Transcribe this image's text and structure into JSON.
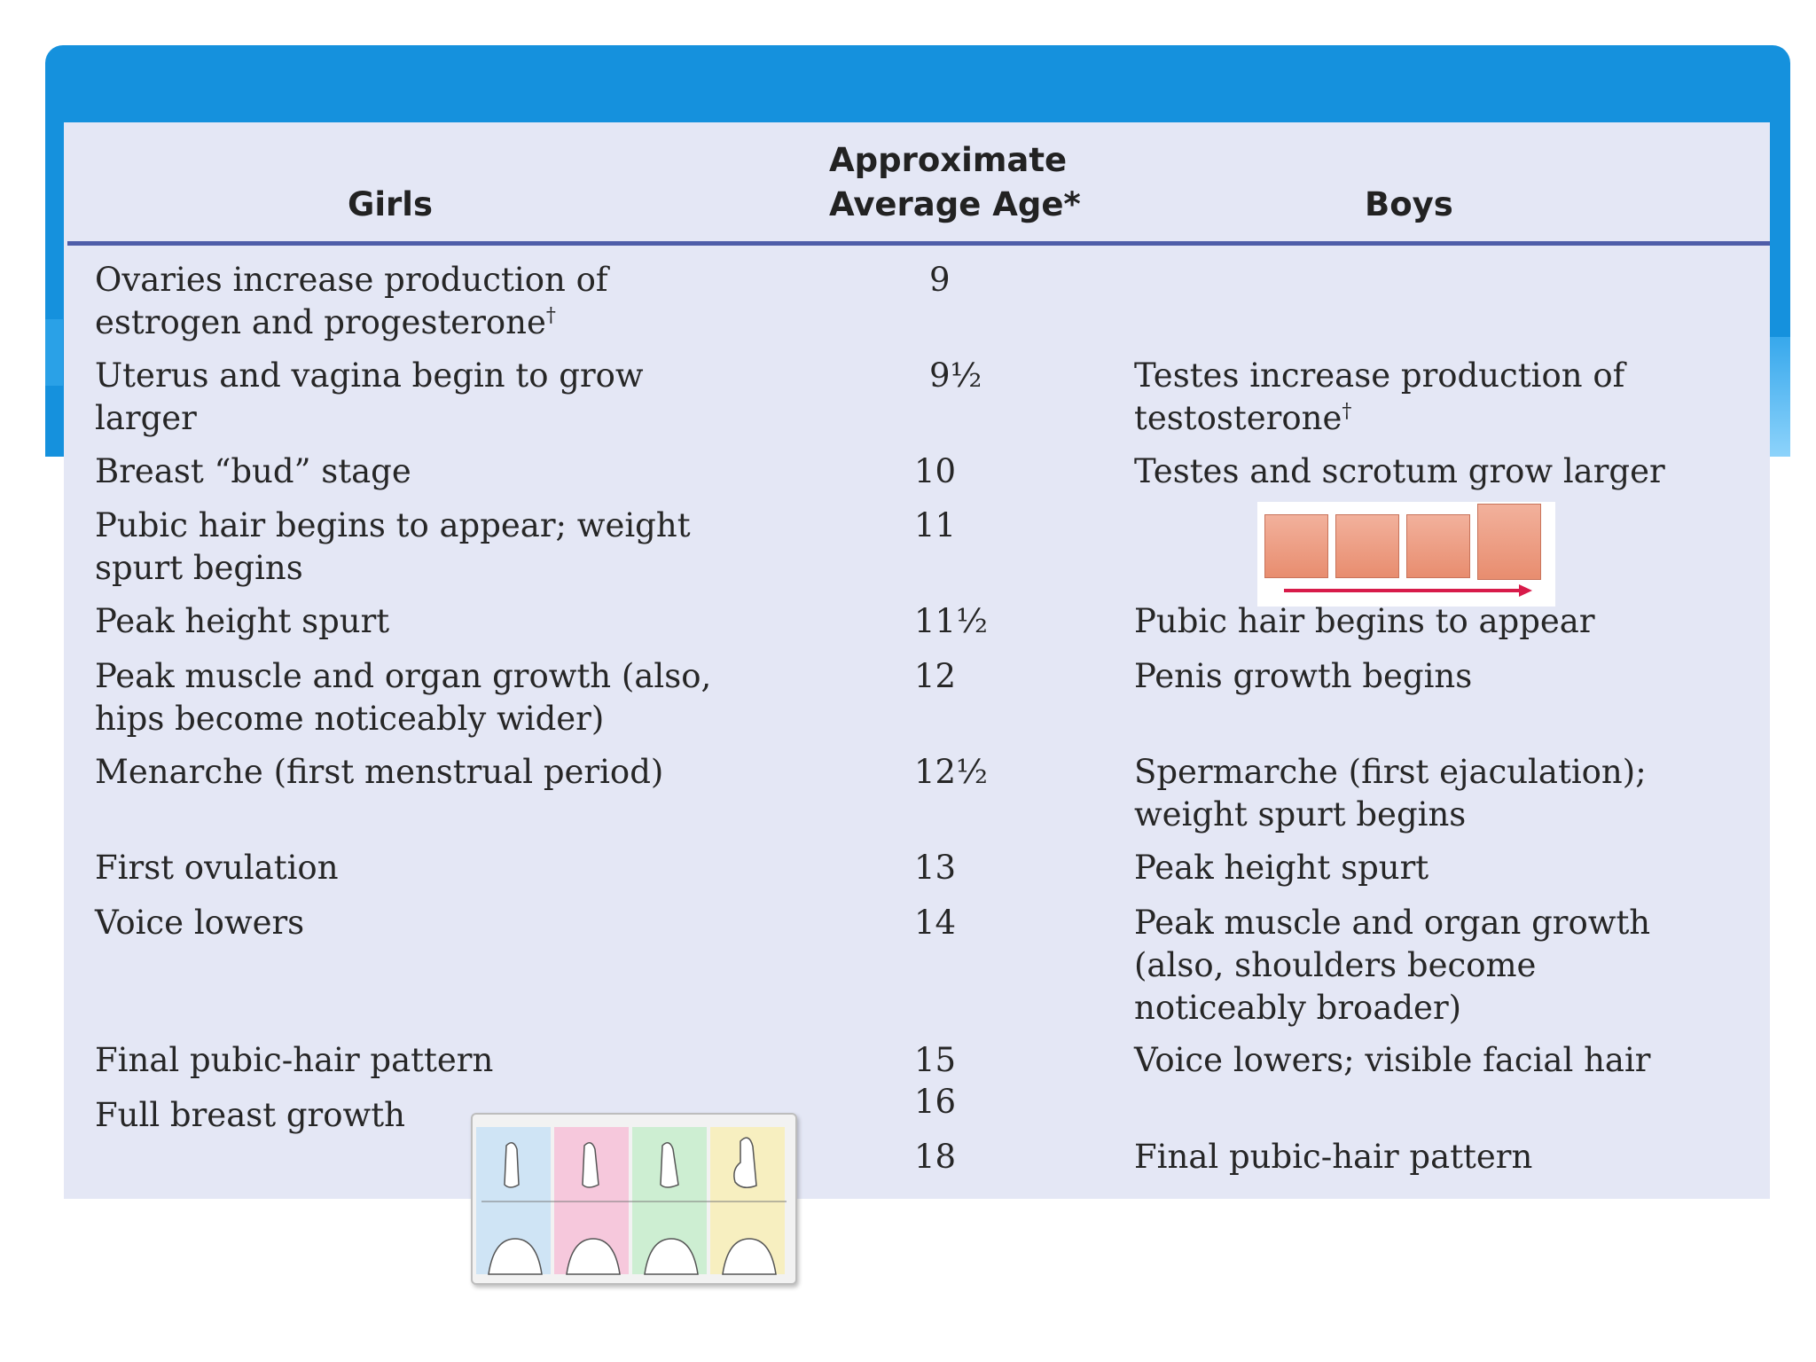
{
  "headers": {
    "girls": "Girls",
    "age_line1": "Approximate",
    "age_line2": "Average Age*",
    "boys": "Boys"
  },
  "rows": [
    {
      "girls": [
        "Ovaries increase production of",
        "estrogen and progesterone"
      ],
      "girls_dagger": "†",
      "age": "9",
      "boys": []
    },
    {
      "girls": [
        "Uterus and vagina begin to grow",
        "larger"
      ],
      "age": "9½",
      "boys": [
        "Testes increase production of",
        "testosterone"
      ],
      "boys_dagger": "†"
    },
    {
      "girls": [
        "Breast “bud” stage"
      ],
      "age": "10",
      "boys": [
        "Testes and scrotum grow larger"
      ]
    },
    {
      "girls": [
        "Pubic hair begins to appear; weight",
        "spurt begins"
      ],
      "age": "11",
      "boys": []
    },
    {
      "girls": [
        "Peak height spurt"
      ],
      "age": "11½",
      "boys": [
        "Pubic hair begins to appear"
      ]
    },
    {
      "girls": [
        "Peak muscle and organ growth (also,",
        "hips become noticeably wider)"
      ],
      "age": "12",
      "boys": [
        "Penis growth begins"
      ]
    },
    {
      "girls": [
        "Menarche (first menstrual period)"
      ],
      "age": "12½",
      "boys": [
        "Spermarche (first ejaculation);",
        "weight spurt begins"
      ]
    },
    {
      "girls": [
        "First ovulation"
      ],
      "age": "13",
      "boys": [
        "Peak height spurt"
      ]
    },
    {
      "girls": [
        "Voice lowers"
      ],
      "age": "14",
      "boys": [
        "Peak muscle and organ growth",
        "(also, shoulders become",
        "noticeably broader)"
      ]
    },
    {
      "girls": [
        "Final pubic-hair pattern"
      ],
      "age": "15",
      "boys": [
        "Voice lowers; visible facial hair"
      ]
    },
    {
      "girls": [
        "Full breast growth"
      ],
      "age": "16",
      "boys": []
    },
    {
      "girls": [],
      "age": "18",
      "boys": [
        "Final pubic-hair pattern"
      ]
    }
  ],
  "images": {
    "boys_stages": {
      "icon": "pubic-hair-stages-illustration",
      "skin_color": "#e88d6f",
      "arrow_color": "#d81b4a"
    },
    "girls_stages": {
      "icon": "breast-development-stages-illustration",
      "tints": [
        "#cfe4f5",
        "#f6c8dc",
        "#cdeed2",
        "#f7efc0"
      ]
    }
  },
  "colors": {
    "banner": "#1591dd",
    "panel": "#e4e7f5",
    "rule": "#4e5da8"
  }
}
